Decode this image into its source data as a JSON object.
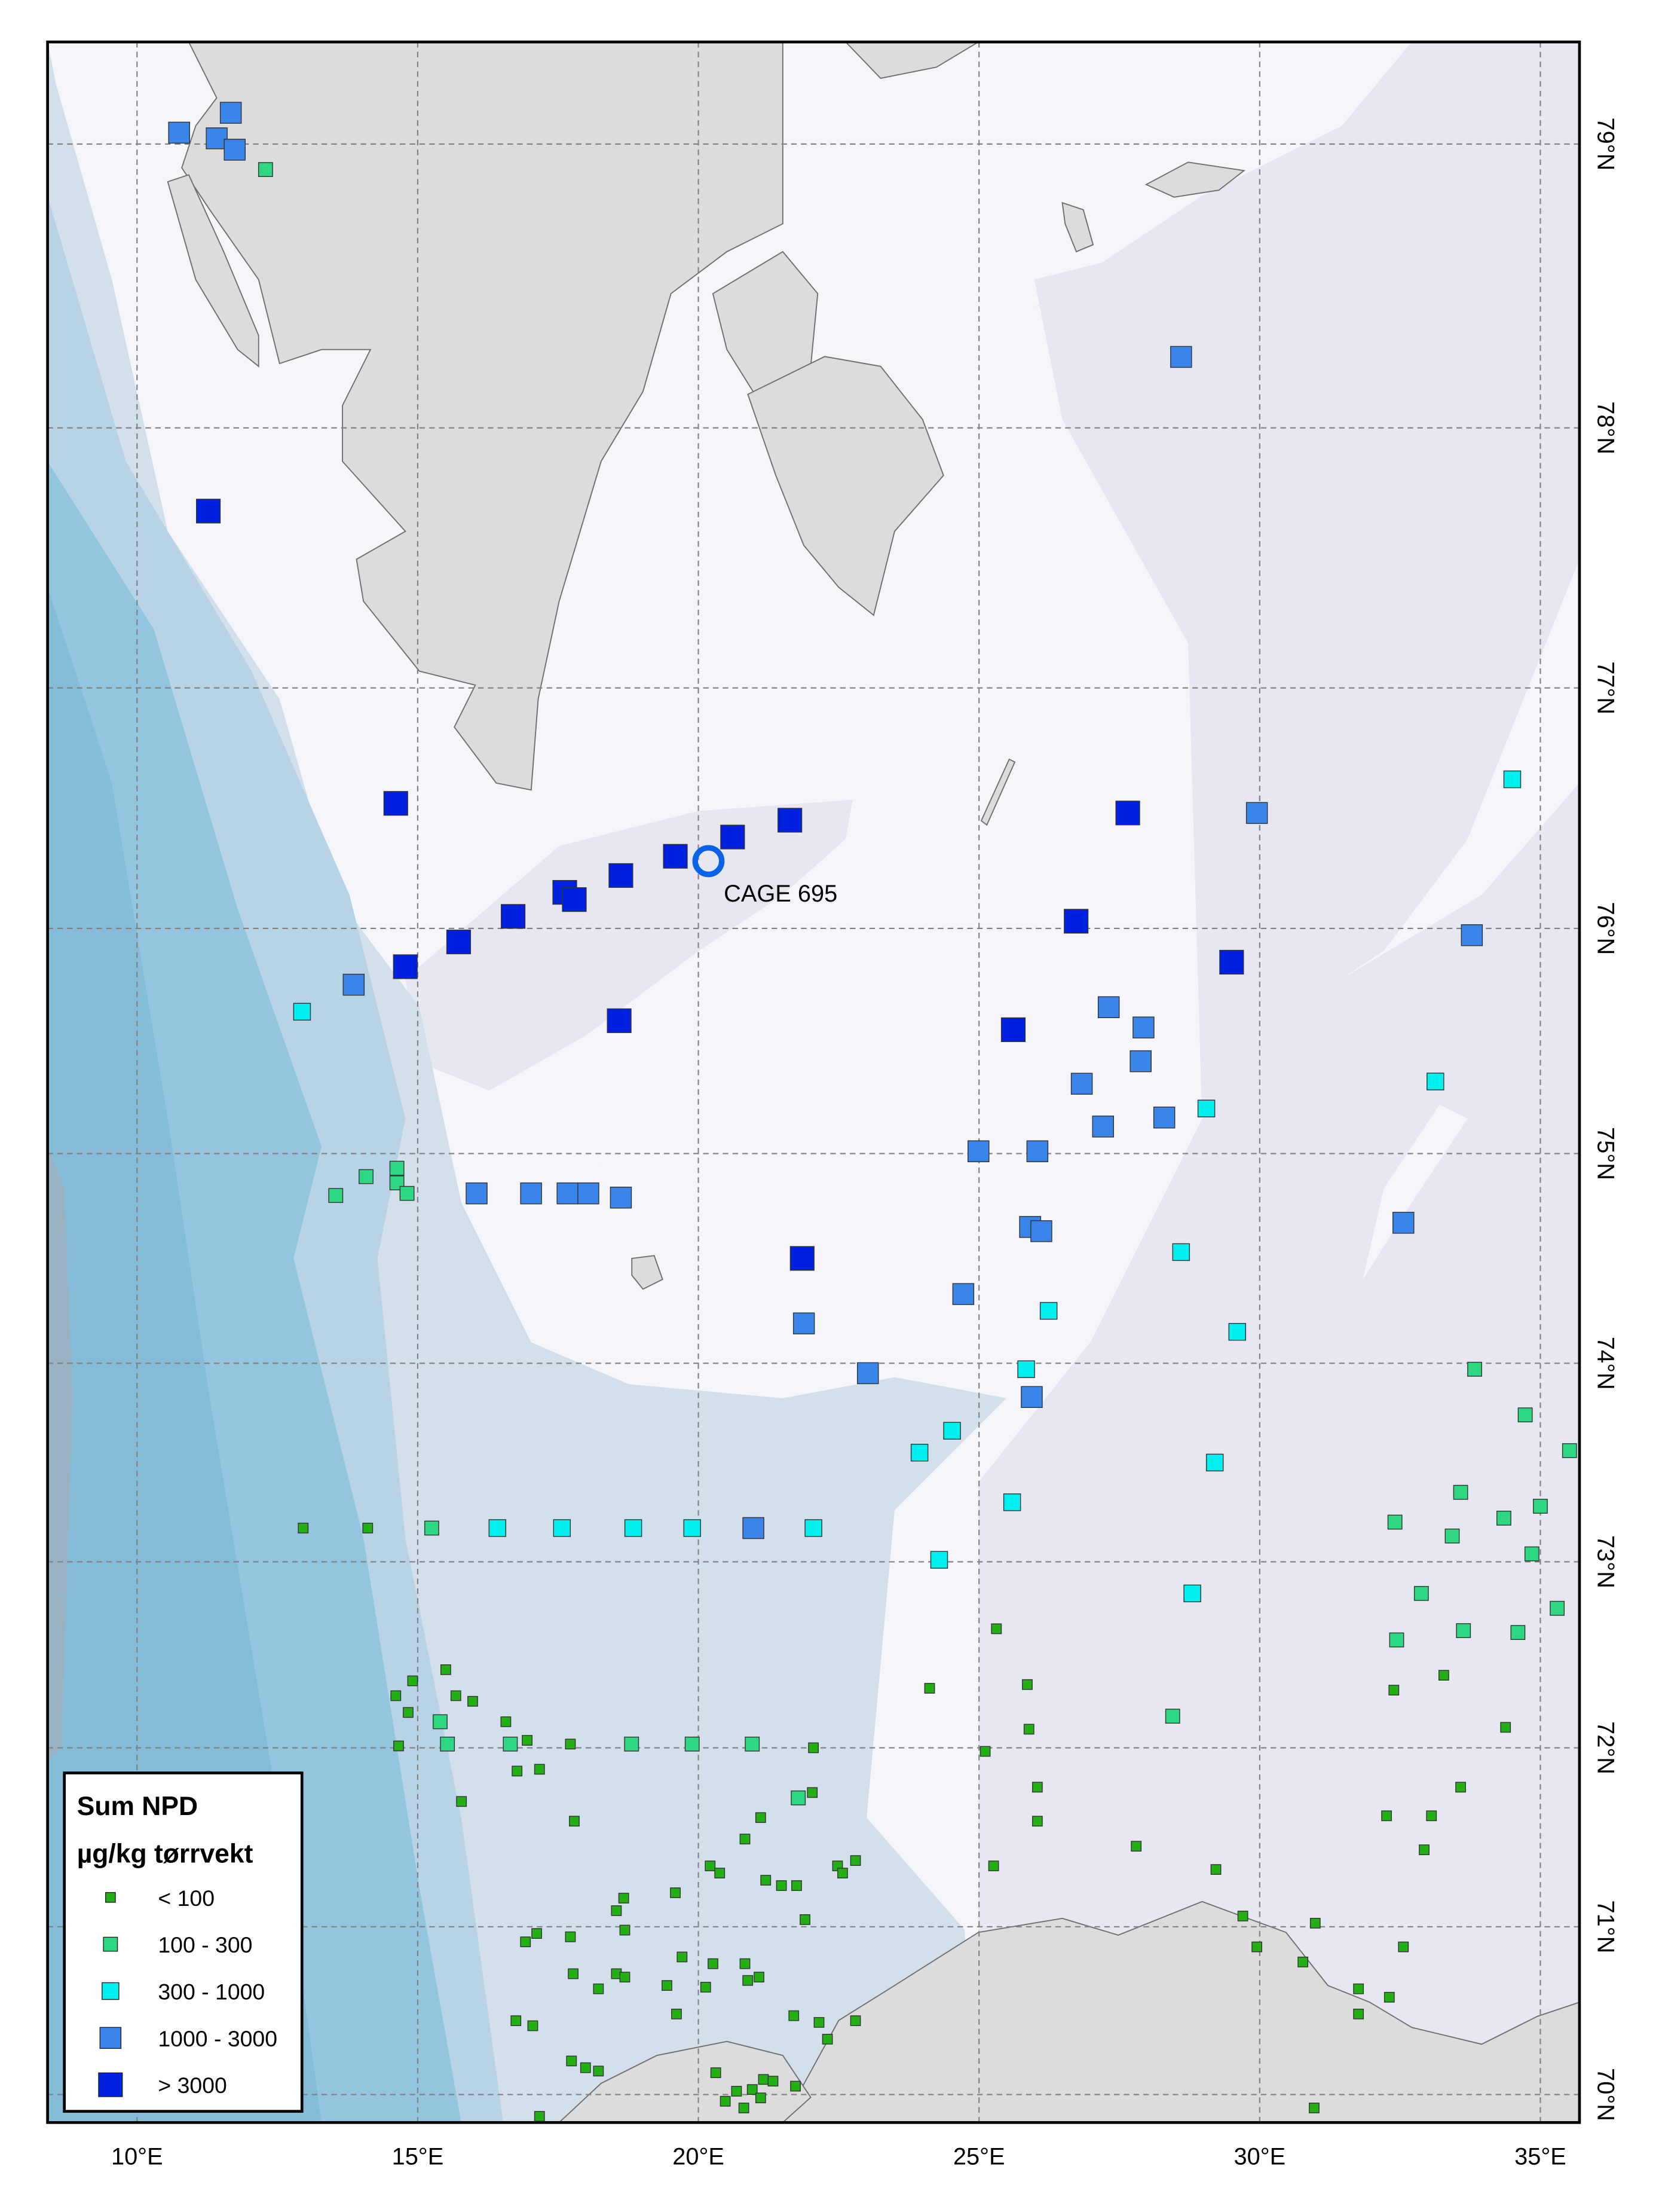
{
  "map": {
    "longitude_labels": [
      {
        "lon": 10,
        "label": "10°E"
      },
      {
        "lon": 15,
        "label": "15°E"
      },
      {
        "lon": 20,
        "label": "20°E"
      },
      {
        "lon": 25,
        "label": "25°E"
      },
      {
        "lon": 30,
        "label": "30°E"
      },
      {
        "lon": 35,
        "label": "35°E"
      }
    ],
    "latitude_labels": [
      {
        "lat": 79,
        "label": "79°N"
      },
      {
        "lat": 78,
        "label": "78°N"
      },
      {
        "lat": 77,
        "label": "77°N"
      },
      {
        "lat": 76,
        "label": "76°N"
      },
      {
        "lat": 75,
        "label": "75°N"
      },
      {
        "lat": 74,
        "label": "74°N"
      },
      {
        "lat": 73,
        "label": "73°N"
      },
      {
        "lat": 72,
        "label": "72°N"
      },
      {
        "lat": 71,
        "label": "71°N"
      },
      {
        "lat": 70,
        "label": "70°N"
      }
    ],
    "colors": {
      "land": "#dcdcdc",
      "shallow": "#f5f5fa",
      "shelf": "#e6e7f0",
      "slope": "#d3e0ec",
      "deep": "#93c5de",
      "marker_ring": "#0a62e8"
    },
    "site_marker": {
      "label": "CAGE 695",
      "lon": 20.18,
      "lat": 76.28,
      "icon": "ring-circle"
    }
  },
  "legend": {
    "title": "Sum NPD",
    "unit": "µg/kg tørrvekt",
    "classes": [
      {
        "label": "< 100",
        "color": "#22b014"
      },
      {
        "label": "100 - 300",
        "color": "#2ed882"
      },
      {
        "label": "300 - 1000",
        "color": "#00f0f0"
      },
      {
        "label": "1000 - 3000",
        "color": "#3a85ea"
      },
      {
        "label": "> 3000",
        "color": "#0020e0"
      }
    ]
  },
  "stations": [
    [
      10.75,
      79.04,
      3
    ],
    [
      11.42,
      79.02,
      3
    ],
    [
      11.67,
      79.11,
      3
    ],
    [
      11.74,
      78.98,
      3
    ],
    [
      12.29,
      78.91,
      1
    ],
    [
      28.6,
      78.25,
      3
    ],
    [
      11.27,
      77.68,
      4
    ],
    [
      14.61,
      76.52,
      4
    ],
    [
      27.65,
      76.48,
      4
    ],
    [
      29.95,
      76.48,
      3
    ],
    [
      34.5,
      76.62,
      2
    ],
    [
      21.63,
      76.45,
      4
    ],
    [
      20.61,
      76.38,
      4
    ],
    [
      19.59,
      76.3,
      4
    ],
    [
      18.62,
      76.22,
      4
    ],
    [
      17.62,
      76.15,
      4
    ],
    [
      17.79,
      76.12,
      4
    ],
    [
      16.7,
      76.05,
      4
    ],
    [
      15.73,
      75.94,
      4
    ],
    [
      14.78,
      75.83,
      4
    ],
    [
      13.86,
      75.75,
      3
    ],
    [
      12.94,
      75.63,
      2
    ],
    [
      26.73,
      76.03,
      4
    ],
    [
      29.5,
      75.85,
      4
    ],
    [
      33.78,
      75.97,
      3
    ],
    [
      18.59,
      75.59,
      4
    ],
    [
      25.61,
      75.55,
      4
    ],
    [
      27.31,
      75.65,
      3
    ],
    [
      27.93,
      75.56,
      3
    ],
    [
      26.83,
      75.31,
      3
    ],
    [
      27.88,
      75.41,
      3
    ],
    [
      27.21,
      75.12,
      3
    ],
    [
      28.3,
      75.16,
      3
    ],
    [
      29.05,
      75.2,
      2
    ],
    [
      33.13,
      75.32,
      2
    ],
    [
      24.99,
      75.01,
      3
    ],
    [
      26.04,
      75.01,
      3
    ],
    [
      16.05,
      74.81,
      3
    ],
    [
      17.02,
      74.81,
      3
    ],
    [
      17.67,
      74.81,
      3
    ],
    [
      18.04,
      74.81,
      3
    ],
    [
      18.62,
      74.79,
      3
    ],
    [
      13.54,
      74.8,
      1
    ],
    [
      14.08,
      74.89,
      1
    ],
    [
      14.63,
      74.93,
      1
    ],
    [
      14.63,
      74.86,
      1
    ],
    [
      14.81,
      74.81,
      1
    ],
    [
      21.85,
      74.5,
      4
    ],
    [
      25.91,
      74.65,
      3
    ],
    [
      26.11,
      74.63,
      3
    ],
    [
      32.56,
      74.67,
      3
    ],
    [
      28.6,
      74.53,
      2
    ],
    [
      21.88,
      74.19,
      3
    ],
    [
      24.72,
      74.33,
      3
    ],
    [
      26.24,
      74.25,
      2
    ],
    [
      29.6,
      74.15,
      2
    ],
    [
      23.02,
      73.95,
      3
    ],
    [
      25.84,
      73.97,
      2
    ],
    [
      25.94,
      73.83,
      3
    ],
    [
      33.83,
      73.97,
      1
    ],
    [
      23.94,
      73.55,
      2
    ],
    [
      24.52,
      73.66,
      2
    ],
    [
      29.2,
      73.5,
      2
    ],
    [
      34.73,
      73.74,
      1
    ],
    [
      35.52,
      73.56,
      1
    ],
    [
      25.59,
      73.3,
      2
    ],
    [
      33.58,
      73.35,
      1
    ],
    [
      32.41,
      73.2,
      1
    ],
    [
      33.43,
      73.13,
      1
    ],
    [
      34.35,
      73.22,
      1
    ],
    [
      35.0,
      73.28,
      1
    ],
    [
      34.85,
      73.04,
      1
    ],
    [
      12.96,
      73.17,
      0
    ],
    [
      14.11,
      73.17,
      0
    ],
    [
      15.25,
      73.17,
      1
    ],
    [
      16.42,
      73.17,
      2
    ],
    [
      17.57,
      73.17,
      2
    ],
    [
      18.84,
      73.17,
      2
    ],
    [
      19.89,
      73.17,
      2
    ],
    [
      20.98,
      73.17,
      3
    ],
    [
      22.05,
      73.17,
      2
    ],
    [
      24.29,
      73.01,
      2
    ],
    [
      28.8,
      72.83,
      2
    ],
    [
      32.88,
      72.83,
      1
    ],
    [
      35.3,
      72.75,
      1
    ],
    [
      32.44,
      72.58,
      1
    ],
    [
      33.63,
      72.63,
      1
    ],
    [
      34.6,
      72.62,
      1
    ],
    [
      28.45,
      72.17,
      1
    ],
    [
      25.31,
      72.64,
      0
    ],
    [
      25.86,
      72.34,
      0
    ],
    [
      24.12,
      72.32,
      0
    ],
    [
      33.28,
      72.39,
      0
    ],
    [
      32.39,
      72.31,
      0
    ],
    [
      25.89,
      72.1,
      0
    ],
    [
      25.11,
      71.98,
      0
    ],
    [
      26.04,
      71.78,
      0
    ],
    [
      26.04,
      71.59,
      0
    ],
    [
      27.8,
      71.45,
      0
    ],
    [
      29.22,
      71.32,
      0
    ],
    [
      25.26,
      71.34,
      0
    ],
    [
      33.58,
      71.78,
      0
    ],
    [
      34.38,
      72.11,
      0
    ],
    [
      32.26,
      71.62,
      0
    ],
    [
      33.06,
      71.62,
      0
    ],
    [
      32.93,
      71.43,
      0
    ],
    [
      29.7,
      71.06,
      0
    ],
    [
      30.99,
      71.02,
      0
    ],
    [
      29.95,
      70.88,
      0
    ],
    [
      30.77,
      70.79,
      0
    ],
    [
      32.56,
      70.88,
      0
    ],
    [
      31.76,
      70.63,
      0
    ],
    [
      32.31,
      70.58,
      0
    ],
    [
      31.76,
      70.48,
      0
    ],
    [
      30.97,
      69.92,
      0
    ],
    [
      15.5,
      72.42,
      0
    ],
    [
      14.91,
      72.36,
      0
    ],
    [
      14.61,
      72.28,
      0
    ],
    [
      15.68,
      72.28,
      0
    ],
    [
      15.98,
      72.25,
      0
    ],
    [
      14.83,
      72.19,
      0
    ],
    [
      14.66,
      72.01,
      0
    ],
    [
      16.57,
      72.14,
      0
    ],
    [
      16.95,
      72.04,
      0
    ],
    [
      17.72,
      72.02,
      0
    ],
    [
      22.05,
      72.0,
      0
    ],
    [
      16.77,
      71.87,
      0
    ],
    [
      17.17,
      71.88,
      0
    ],
    [
      15.78,
      71.7,
      0
    ],
    [
      22.03,
      71.75,
      0
    ],
    [
      17.79,
      71.59,
      0
    ],
    [
      20.83,
      71.49,
      0
    ],
    [
      21.11,
      71.61,
      0
    ],
    [
      20.21,
      71.34,
      0
    ],
    [
      20.38,
      71.3,
      0
    ],
    [
      21.2,
      71.26,
      0
    ],
    [
      21.48,
      71.23,
      0
    ],
    [
      21.75,
      71.23,
      0
    ],
    [
      22.48,
      71.34,
      0
    ],
    [
      22.8,
      71.37,
      0
    ],
    [
      22.57,
      71.3,
      0
    ],
    [
      19.59,
      71.19,
      0
    ],
    [
      18.67,
      71.16,
      0
    ],
    [
      18.54,
      71.09,
      0
    ],
    [
      21.9,
      71.04,
      0
    ],
    [
      18.69,
      70.98,
      0
    ],
    [
      17.12,
      70.96,
      0
    ],
    [
      16.92,
      70.91,
      0
    ],
    [
      17.72,
      70.94,
      0
    ],
    [
      19.71,
      70.82,
      0
    ],
    [
      20.26,
      70.78,
      0
    ],
    [
      20.83,
      70.78,
      0
    ],
    [
      17.77,
      70.72,
      0
    ],
    [
      18.22,
      70.63,
      0
    ],
    [
      18.54,
      70.72,
      0
    ],
    [
      18.69,
      70.7,
      0
    ],
    [
      19.44,
      70.65,
      0
    ],
    [
      20.13,
      70.64,
      0
    ],
    [
      20.88,
      70.68,
      0
    ],
    [
      21.08,
      70.7,
      0
    ],
    [
      19.61,
      70.48,
      0
    ],
    [
      16.75,
      70.44,
      0
    ],
    [
      17.05,
      70.41,
      0
    ],
    [
      21.7,
      70.47,
      0
    ],
    [
      22.15,
      70.43,
      0
    ],
    [
      22.8,
      70.44,
      0
    ],
    [
      22.3,
      70.33,
      0
    ],
    [
      17.74,
      70.2,
      0
    ],
    [
      17.99,
      70.16,
      0
    ],
    [
      18.22,
      70.14,
      0
    ],
    [
      20.31,
      70.13,
      0
    ],
    [
      21.73,
      70.05,
      0
    ],
    [
      21.16,
      70.09,
      0
    ],
    [
      20.96,
      70.03,
      0
    ],
    [
      20.68,
      70.02,
      0
    ],
    [
      20.48,
      69.96,
      0
    ],
    [
      20.81,
      69.92,
      0
    ],
    [
      17.17,
      69.87,
      0
    ],
    [
      21.11,
      69.98,
      0
    ],
    [
      21.33,
      70.08,
      0
    ],
    [
      15.4,
      72.14,
      1
    ],
    [
      15.53,
      72.02,
      1
    ],
    [
      16.65,
      72.02,
      1
    ],
    [
      18.81,
      72.02,
      1
    ],
    [
      19.89,
      72.02,
      1
    ],
    [
      20.96,
      72.02,
      1
    ],
    [
      21.78,
      71.72,
      1
    ]
  ]
}
